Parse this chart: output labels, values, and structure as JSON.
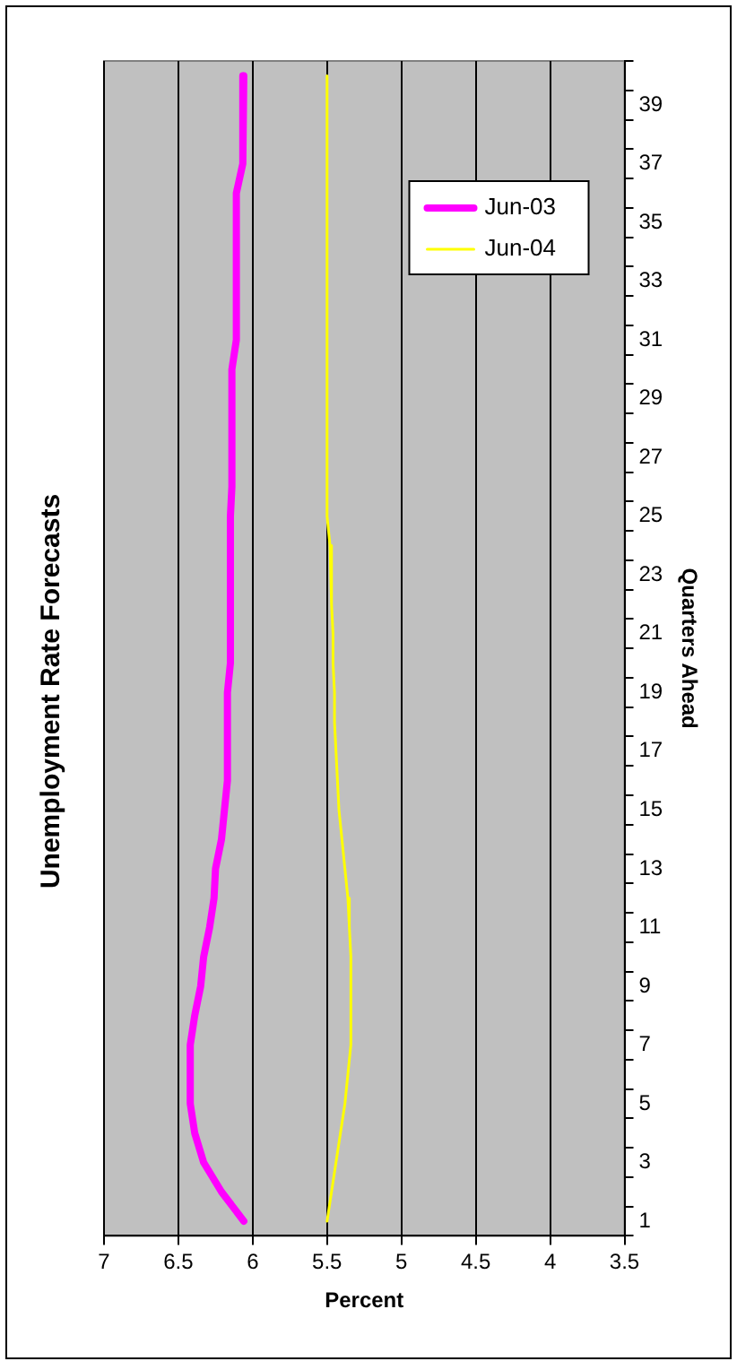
{
  "chart_data": {
    "type": "line",
    "orientation": "horizontal",
    "title": "Unemployment Rate Forecasts",
    "xlabel": "Percent",
    "ylabel": "Quarters Ahead",
    "categories": [
      null,
      "39",
      null,
      "37",
      null,
      "35",
      null,
      "33",
      null,
      "31",
      null,
      "29",
      null,
      "27",
      null,
      "25",
      null,
      "23",
      null,
      "21",
      null,
      "19",
      null,
      "17",
      null,
      "15",
      null,
      "13",
      null,
      "11",
      null,
      "9",
      null,
      "7",
      null,
      "5",
      null,
      "3",
      null,
      "1"
    ],
    "series": [
      {
        "name": "Jun-03",
        "color": "#ff00ff",
        "values": [
          6.06,
          6.06,
          6.07,
          6.07,
          6.11,
          6.11,
          6.11,
          6.11,
          6.11,
          6.11,
          6.14,
          6.14,
          6.14,
          6.14,
          6.14,
          6.15,
          6.15,
          6.15,
          6.15,
          6.15,
          6.15,
          6.17,
          6.17,
          6.17,
          6.17,
          6.19,
          6.21,
          6.25,
          6.26,
          6.29,
          6.33,
          6.35,
          6.39,
          6.42,
          6.42,
          6.42,
          6.39,
          6.33,
          6.21,
          6.06
        ]
      },
      {
        "name": "Jun-04",
        "color": "#ffff00",
        "values": [
          5.5,
          5.5,
          5.5,
          5.5,
          5.5,
          5.5,
          5.5,
          5.5,
          5.5,
          5.5,
          5.5,
          5.5,
          5.5,
          5.5,
          5.5,
          5.5,
          5.48,
          5.47,
          5.47,
          5.46,
          5.46,
          5.45,
          5.45,
          5.44,
          5.43,
          5.42,
          5.4,
          5.38,
          5.36,
          5.35,
          5.34,
          5.34,
          5.34,
          5.34,
          5.36,
          5.38,
          5.41,
          5.44,
          5.47,
          5.5
        ]
      }
    ],
    "xlim": [
      7,
      3.5
    ],
    "xticks": [
      7,
      6.5,
      6,
      5.5,
      5,
      4.5,
      4,
      3.5
    ],
    "grid": "x",
    "legend": "top right",
    "marker": "none",
    "line_style": "solid"
  }
}
